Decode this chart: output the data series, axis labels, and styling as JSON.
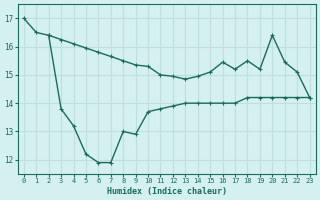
{
  "xlabel": "Humidex (Indice chaleur)",
  "background_color": "#d4f0f0",
  "grid_color": "#c0dede",
  "line_color": "#1a6b5a",
  "xlim": [
    -0.5,
    23.5
  ],
  "ylim": [
    11.5,
    17.5
  ],
  "yticks": [
    12,
    13,
    14,
    15,
    16,
    17
  ],
  "xticks": [
    0,
    1,
    2,
    3,
    4,
    5,
    6,
    7,
    8,
    9,
    10,
    11,
    12,
    13,
    14,
    15,
    16,
    17,
    18,
    19,
    20,
    21,
    22,
    23
  ],
  "line1_x": [
    0,
    1,
    2,
    3,
    4,
    5,
    6,
    7,
    8,
    9,
    10,
    11,
    12,
    13,
    14,
    15,
    16,
    17,
    18,
    19,
    20,
    21,
    22,
    23
  ],
  "line1_y": [
    17.0,
    16.5,
    16.4,
    16.25,
    16.1,
    15.95,
    15.8,
    15.65,
    15.5,
    15.35,
    15.3,
    15.0,
    14.95,
    14.85,
    14.95,
    15.1,
    15.45,
    15.2,
    15.5,
    15.2,
    16.4,
    15.45,
    15.1,
    14.2
  ],
  "line2_x": [
    2,
    3,
    4,
    5,
    6,
    7,
    8,
    9,
    10,
    11,
    12,
    13,
    14,
    15,
    16,
    17,
    18,
    19,
    20,
    21,
    22,
    23
  ],
  "line2_y": [
    16.4,
    13.8,
    13.2,
    12.2,
    11.9,
    11.9,
    13.0,
    12.9,
    13.7,
    13.8,
    13.9,
    14.0,
    14.0,
    14.0,
    14.0,
    14.0,
    14.2,
    14.2,
    14.2,
    14.2,
    14.2,
    14.2
  ]
}
